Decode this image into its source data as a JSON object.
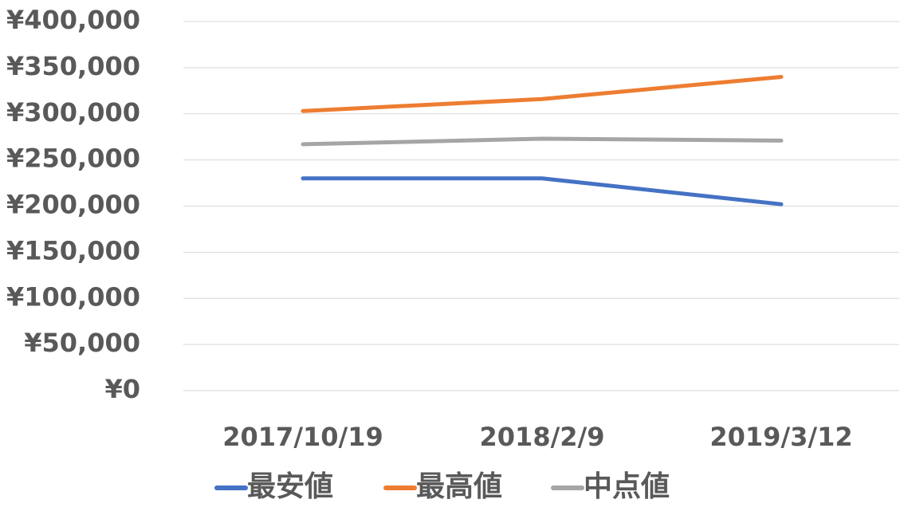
{
  "chart_data": {
    "type": "line",
    "categories": [
      "2017/10/19",
      "2018/2/9",
      "2019/3/12"
    ],
    "series": [
      {
        "name": "最安値",
        "values": [
          230000,
          230000,
          202000
        ],
        "color": "#4472C4"
      },
      {
        "name": "最高値",
        "values": [
          303000,
          316000,
          340000
        ],
        "color": "#ED7D31"
      },
      {
        "name": "中点値",
        "values": [
          267000,
          273000,
          271000
        ],
        "color": "#A5A5A5"
      }
    ],
    "yticks": [
      "¥0",
      "¥50,000",
      "¥100,000",
      "¥150,000",
      "¥200,000",
      "¥250,000",
      "¥300,000",
      "¥350,000",
      "¥400,000"
    ],
    "ylim": [
      0,
      400000
    ],
    "grid": true,
    "legend_position": "bottom",
    "gridline_color": "#D9D9D9",
    "text_color": "#595959"
  }
}
